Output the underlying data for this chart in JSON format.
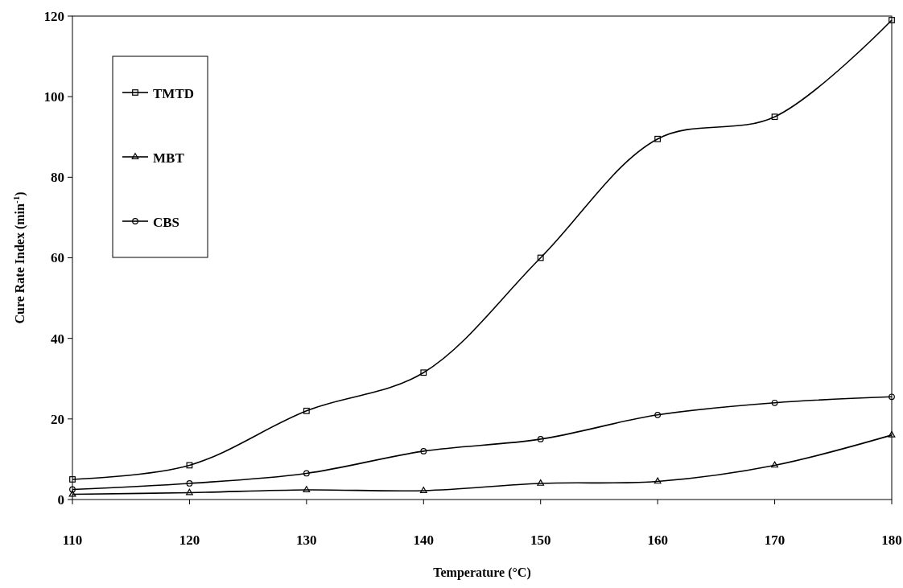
{
  "chart_data": {
    "type": "line",
    "xlabel": "Temperature (°C)",
    "ylabel": "Cure Rate Index (min$^{-1}$)",
    "x": [
      110,
      120,
      130,
      140,
      150,
      160,
      170,
      180
    ],
    "series": [
      {
        "name": "TMTD",
        "color": "#000000",
        "marker": "square",
        "values": [
          5,
          8.5,
          22,
          31.5,
          60,
          89.5,
          95,
          119
        ]
      },
      {
        "name": "MBT",
        "color": "#000000",
        "marker": "triangle",
        "values": [
          1.3,
          1.7,
          2.4,
          2.2,
          4,
          4.5,
          8.5,
          16
        ]
      },
      {
        "name": "CBS",
        "color": "#000000",
        "marker": "circle",
        "values": [
          2.5,
          4,
          6.5,
          12,
          15,
          21,
          24,
          25.5
        ]
      }
    ],
    "xlim": [
      110,
      180
    ],
    "xticks": [
      110,
      120,
      130,
      140,
      150,
      160,
      170,
      180
    ],
    "ylim": [
      0,
      120
    ],
    "yticks": [
      0,
      20,
      40,
      60,
      80,
      100,
      120
    ],
    "grid": false,
    "legend": "top left",
    "line_style": "solid"
  }
}
